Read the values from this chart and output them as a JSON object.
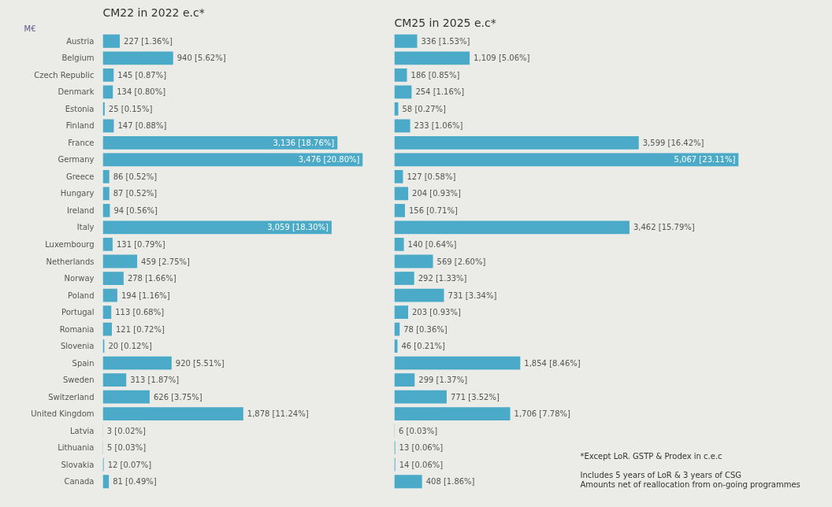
{
  "chart_data": [
    {
      "type": "bar",
      "orientation": "horizontal",
      "title": "CM22 in 2022 e.c*",
      "annotations": [
        "M€"
      ],
      "tick_labels": "y",
      "color": "#4aaac8",
      "categories": [
        "Austria",
        "Belgium",
        "Czech Republic",
        "Denmark",
        "Estonia",
        "Finland",
        "France",
        "Germany",
        "Greece",
        "Hungary",
        "Ireland",
        "Italy",
        "Luxembourg",
        "Netherlands",
        "Norway",
        "Poland",
        "Portugal",
        "Romania",
        "Slovenia",
        "Spain",
        "Sweden",
        "Switzerland",
        "United Kingdom",
        "Latvia",
        "Lithuania",
        "Slovakia",
        "Canada"
      ],
      "values": [
        227,
        940,
        145,
        134,
        25,
        147,
        3136,
        3476,
        86,
        87,
        94,
        3059,
        131,
        459,
        278,
        194,
        113,
        121,
        20,
        920,
        313,
        626,
        1878,
        3,
        5,
        12,
        81
      ],
      "value_labels": [
        "227 [1.36%]",
        "940 [5.62%]",
        "145 [0.87%]",
        "134 [0.80%]",
        "25 [0.15%]",
        "147 [0.88%]",
        "3,136 [18.76%]",
        "3,476 [20.80%]",
        "86 [0.52%]",
        "87 [0.52%]",
        "94 [0.56%]",
        "3,059 [18.30%]",
        "131 [0.79%]",
        "459 [2.75%]",
        "278 [1.66%]",
        "194 [1.16%]",
        "113 [0.68%]",
        "121 [0.72%]",
        "20 [0.12%]",
        "920 [5.51%]",
        "313 [1.87%]",
        "626 [3.75%]",
        "1,878 [11.24%]",
        "3 [0.02%]",
        "5 [0.03%]",
        "12 [0.07%]",
        "81 [0.49%]"
      ]
    },
    {
      "type": "bar",
      "orientation": "horizontal",
      "title": "CM25 in 2025 e.c*",
      "tick_labels": false,
      "color": "#4aaac8",
      "annotations": [
        "*Except LoR. GSTP & Prodex in c.e.c",
        "Includes 5 years of LoR & 3 years of CSG",
        "Amounts net of reallocation from on-going programmes"
      ],
      "categories": [
        null,
        null,
        null,
        null,
        null,
        null,
        null,
        null,
        null,
        null,
        null,
        null,
        null,
        null,
        null,
        null,
        null,
        null,
        null,
        null,
        null,
        null,
        null,
        null,
        null,
        null,
        null
      ],
      "values": [
        336,
        1109,
        186,
        254,
        58,
        233,
        3599,
        5067,
        127,
        204,
        156,
        3462,
        140,
        569,
        292,
        731,
        203,
        78,
        46,
        1854,
        299,
        771,
        1706,
        6,
        13,
        14,
        408
      ],
      "value_labels": [
        "336 [1.53%]",
        "1,109 [5.06%]",
        "186 [0.85%]",
        "254 [1.16%]",
        "58 [0.27%]",
        "233 [1.06%]",
        "3,599 [16.42%]",
        "5,067 [23.11%]",
        "127 [0.58%]",
        "204 [0.93%]",
        "156 [0.71%]",
        "3,462 [15.79%]",
        "140 [0.64%]",
        "569 [2.60%]",
        "292 [1.33%]",
        "731 [3.34%]",
        "203 [0.93%]",
        "78 [0.36%]",
        "46 [0.21%]",
        "1,854 [8.46%]",
        "299 [1.37%]",
        "771 [3.52%]",
        "1,706 [7.78%]",
        "6 [0.03%]",
        "13 [0.06%]",
        "14 [0.06%]",
        "408 [1.86%]"
      ]
    }
  ]
}
